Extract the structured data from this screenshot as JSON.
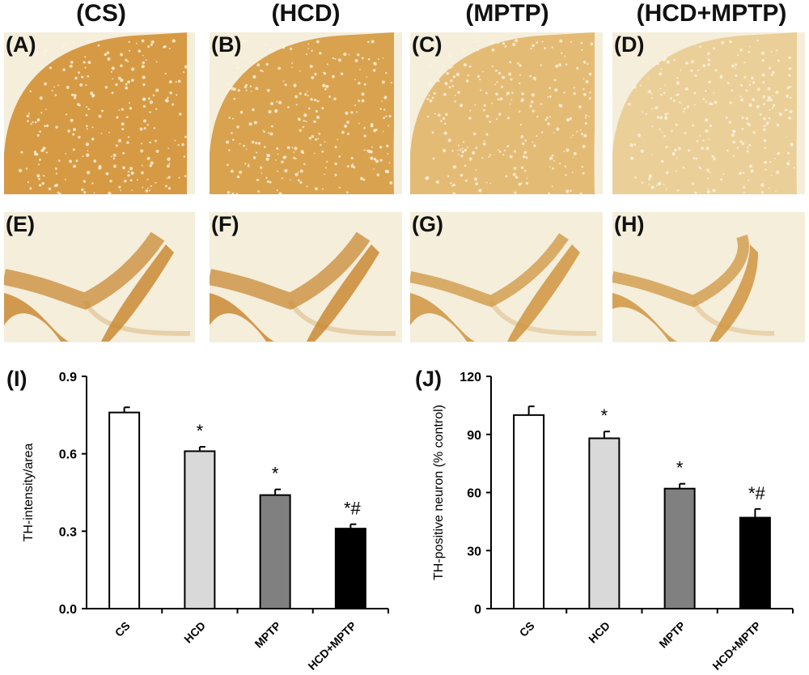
{
  "columns": [
    "(CS)",
    "(HCD)",
    "(MPTP)",
    "(HCD+MPTP)"
  ],
  "panels_top": [
    {
      "label": "(A)",
      "stain": "#d69a44"
    },
    {
      "label": "(B)",
      "stain": "#d9a24e"
    },
    {
      "label": "(C)",
      "stain": "#e4bb75"
    },
    {
      "label": "(D)",
      "stain": "#ebcf98"
    }
  ],
  "panels_bottom": [
    {
      "label": "(E)",
      "stain": "#c98a35"
    },
    {
      "label": "(F)",
      "stain": "#c98a35"
    },
    {
      "label": "(G)",
      "stain": "#cf9440"
    },
    {
      "label": "(H)",
      "stain": "#cf9440"
    }
  ],
  "chart_data": [
    {
      "panel_label": "(I)",
      "type": "bar",
      "categories": [
        "CS",
        "HCD",
        "MPTP",
        "HCD+MPTP"
      ],
      "values": [
        0.76,
        0.61,
        0.44,
        0.31
      ],
      "errors": [
        0.02,
        0.017,
        0.022,
        0.017
      ],
      "annotations": [
        "",
        "*",
        "*",
        "*#"
      ],
      "colors": [
        "#ffffff",
        "#d9d9d9",
        "#808080",
        "#000000"
      ],
      "ylabel": "TH-intensity/area",
      "xlabel": "",
      "ylim": [
        0,
        0.9
      ],
      "yticks": [
        "0.0",
        "0.3",
        "0.6",
        "0.9"
      ],
      "ytick_values": [
        0,
        0.3,
        0.6,
        0.9
      ]
    },
    {
      "panel_label": "(J)",
      "type": "bar",
      "categories": [
        "CS",
        "HCD",
        "MPTP",
        "HCD+MPTP"
      ],
      "values": [
        100,
        88,
        62,
        47
      ],
      "errors": [
        4.5,
        3.5,
        2.5,
        4.5
      ],
      "annotations": [
        "",
        "*",
        "*",
        "*#"
      ],
      "colors": [
        "#ffffff",
        "#d9d9d9",
        "#808080",
        "#000000"
      ],
      "ylabel": "TH-positive neuron (% control)",
      "xlabel": "",
      "ylim": [
        0,
        120
      ],
      "yticks": [
        "0",
        "30",
        "60",
        "90",
        "120"
      ],
      "ytick_values": [
        0,
        30,
        60,
        90,
        120
      ]
    }
  ]
}
